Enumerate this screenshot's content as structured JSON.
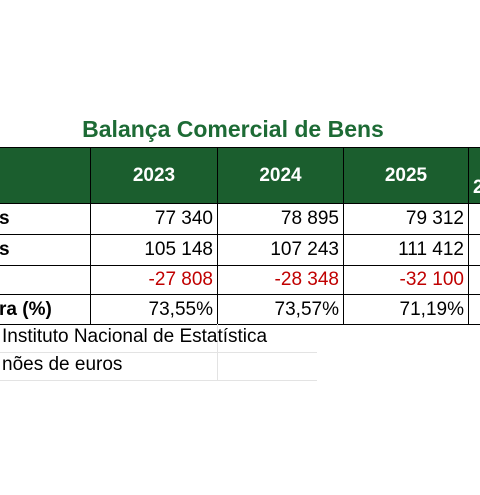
{
  "title": "Balança Comercial de Bens",
  "table": {
    "columns": [
      "2023",
      "2024",
      "2025",
      "2"
    ],
    "rows": [
      {
        "label": "s",
        "cells": [
          "77 340",
          "78 895",
          "79 312"
        ]
      },
      {
        "label": "s",
        "cells": [
          "105 148",
          "107 243",
          "111 412"
        ]
      },
      {
        "cells": [
          "-27 808",
          "-28 348",
          "-32 100"
        ],
        "negative": true
      },
      {
        "label": "ra (%)",
        "cells": [
          "73,55%",
          "73,57%",
          "71,19%"
        ]
      }
    ]
  },
  "footnotes": [
    "Instituto Nacional de Estatística",
    "nões de euros"
  ]
}
